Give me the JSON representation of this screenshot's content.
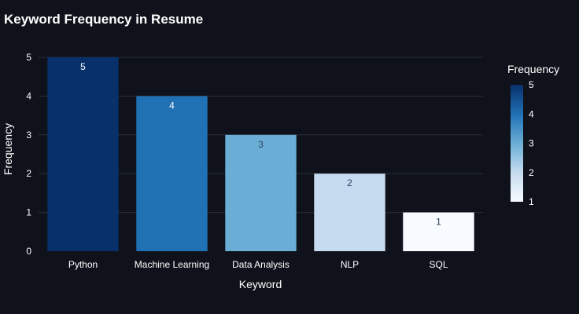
{
  "chart_data": {
    "type": "bar",
    "title": "Keyword Frequency in Resume",
    "xlabel": "Keyword",
    "ylabel": "Frequency",
    "categories": [
      "Python",
      "Machine Learning",
      "Data Analysis",
      "NLP",
      "SQL"
    ],
    "values": [
      5,
      4,
      3,
      2,
      1
    ],
    "bar_labels": [
      "5",
      "4",
      "3",
      "2",
      "1"
    ],
    "y_ticks": [
      "0",
      "1",
      "2",
      "3",
      "4",
      "5"
    ],
    "ylim": [
      0,
      5
    ],
    "grid": true,
    "colorscale": "Blues",
    "colorbar": {
      "title": "Frequency",
      "ticks": [
        "1",
        "2",
        "3",
        "4",
        "5"
      ],
      "range": [
        1,
        5
      ]
    },
    "bar_colors": [
      "#08306b",
      "#2070b4",
      "#6aaed6",
      "#c6dbef",
      "#f7fbff"
    ],
    "bar_label_colors": [
      "#ffffff",
      "#ffffff",
      "#2a3f5f",
      "#2a3f5f",
      "#2a3f5f"
    ],
    "background": "#0f121a"
  }
}
